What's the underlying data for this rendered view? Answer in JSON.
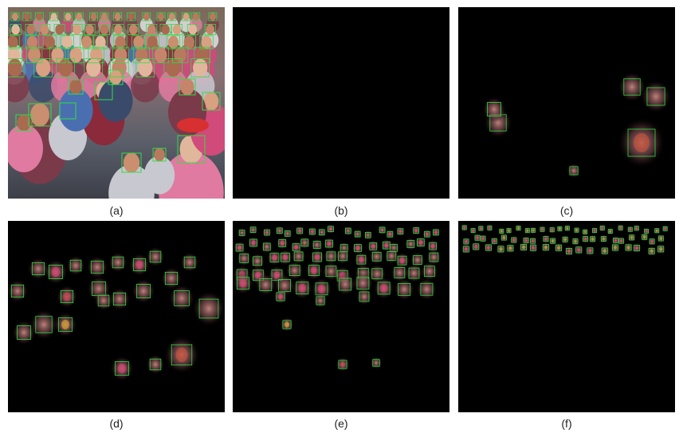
{
  "panels": [
    {
      "id": "a",
      "label": "(a)",
      "content": "crowd photograph with green face detection boxes"
    },
    {
      "id": "b",
      "label": "(b)",
      "content": "black"
    },
    {
      "id": "c",
      "label": "(c)",
      "content": "large-scale face response map"
    },
    {
      "id": "d",
      "label": "(d)",
      "content": "medium-large face response map"
    },
    {
      "id": "e",
      "label": "(e)",
      "content": "medium-small face response map"
    },
    {
      "id": "f",
      "label": "(f)",
      "content": "tiny face response map"
    }
  ],
  "colors": {
    "box": "#33dd44",
    "background": "#000000",
    "caption": "#222222"
  }
}
